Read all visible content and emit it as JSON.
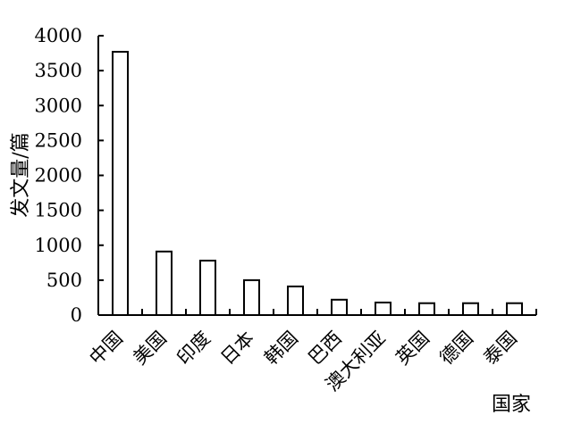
{
  "chart_data": {
    "type": "bar",
    "title": "",
    "xlabel": "国家",
    "ylabel": "发文量/篇",
    "categories": [
      "中国",
      "美国",
      "印度",
      "日本",
      "韩国",
      "巴西",
      "澳大利亚",
      "英国",
      "德国",
      "泰国"
    ],
    "values": [
      3770,
      910,
      780,
      500,
      410,
      220,
      180,
      170,
      170,
      170
    ],
    "ylim": [
      0,
      4000
    ],
    "yticks": [
      "0",
      "500",
      "1000",
      "1500",
      "2000",
      "2500",
      "3000",
      "3500",
      "4000"
    ],
    "grid": false,
    "legend": "none",
    "bar_fill": "#ffffff",
    "bar_stroke": "#000000"
  }
}
